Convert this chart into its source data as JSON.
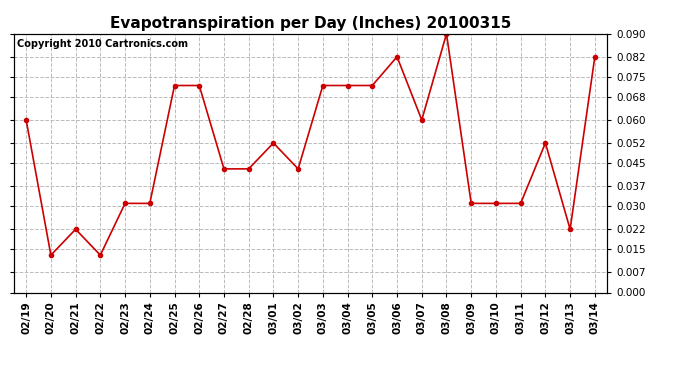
{
  "title": "Evapotranspiration per Day (Inches) 20100315",
  "copyright_text": "Copyright 2010 Cartronics.com",
  "dates": [
    "02/19",
    "02/20",
    "02/21",
    "02/22",
    "02/23",
    "02/24",
    "02/25",
    "02/26",
    "02/27",
    "02/28",
    "03/01",
    "03/02",
    "03/03",
    "03/04",
    "03/05",
    "03/06",
    "03/07",
    "03/08",
    "03/09",
    "03/10",
    "03/11",
    "03/12",
    "03/13",
    "03/14"
  ],
  "values": [
    0.06,
    0.013,
    0.022,
    0.013,
    0.031,
    0.031,
    0.072,
    0.072,
    0.043,
    0.043,
    0.052,
    0.043,
    0.072,
    0.072,
    0.072,
    0.082,
    0.06,
    0.09,
    0.031,
    0.031,
    0.031,
    0.052,
    0.022,
    0.082
  ],
  "line_color": "#cc0000",
  "marker": "o",
  "marker_size": 3,
  "marker_color": "#cc0000",
  "ylim": [
    0.0,
    0.09
  ],
  "yticks": [
    0.0,
    0.007,
    0.015,
    0.022,
    0.03,
    0.037,
    0.045,
    0.052,
    0.06,
    0.068,
    0.075,
    0.082,
    0.09
  ],
  "background_color": "#ffffff",
  "grid_color": "#bbbbbb",
  "title_fontsize": 11,
  "copyright_fontsize": 7,
  "tick_fontsize": 7.5,
  "fig_width": 6.9,
  "fig_height": 3.75
}
